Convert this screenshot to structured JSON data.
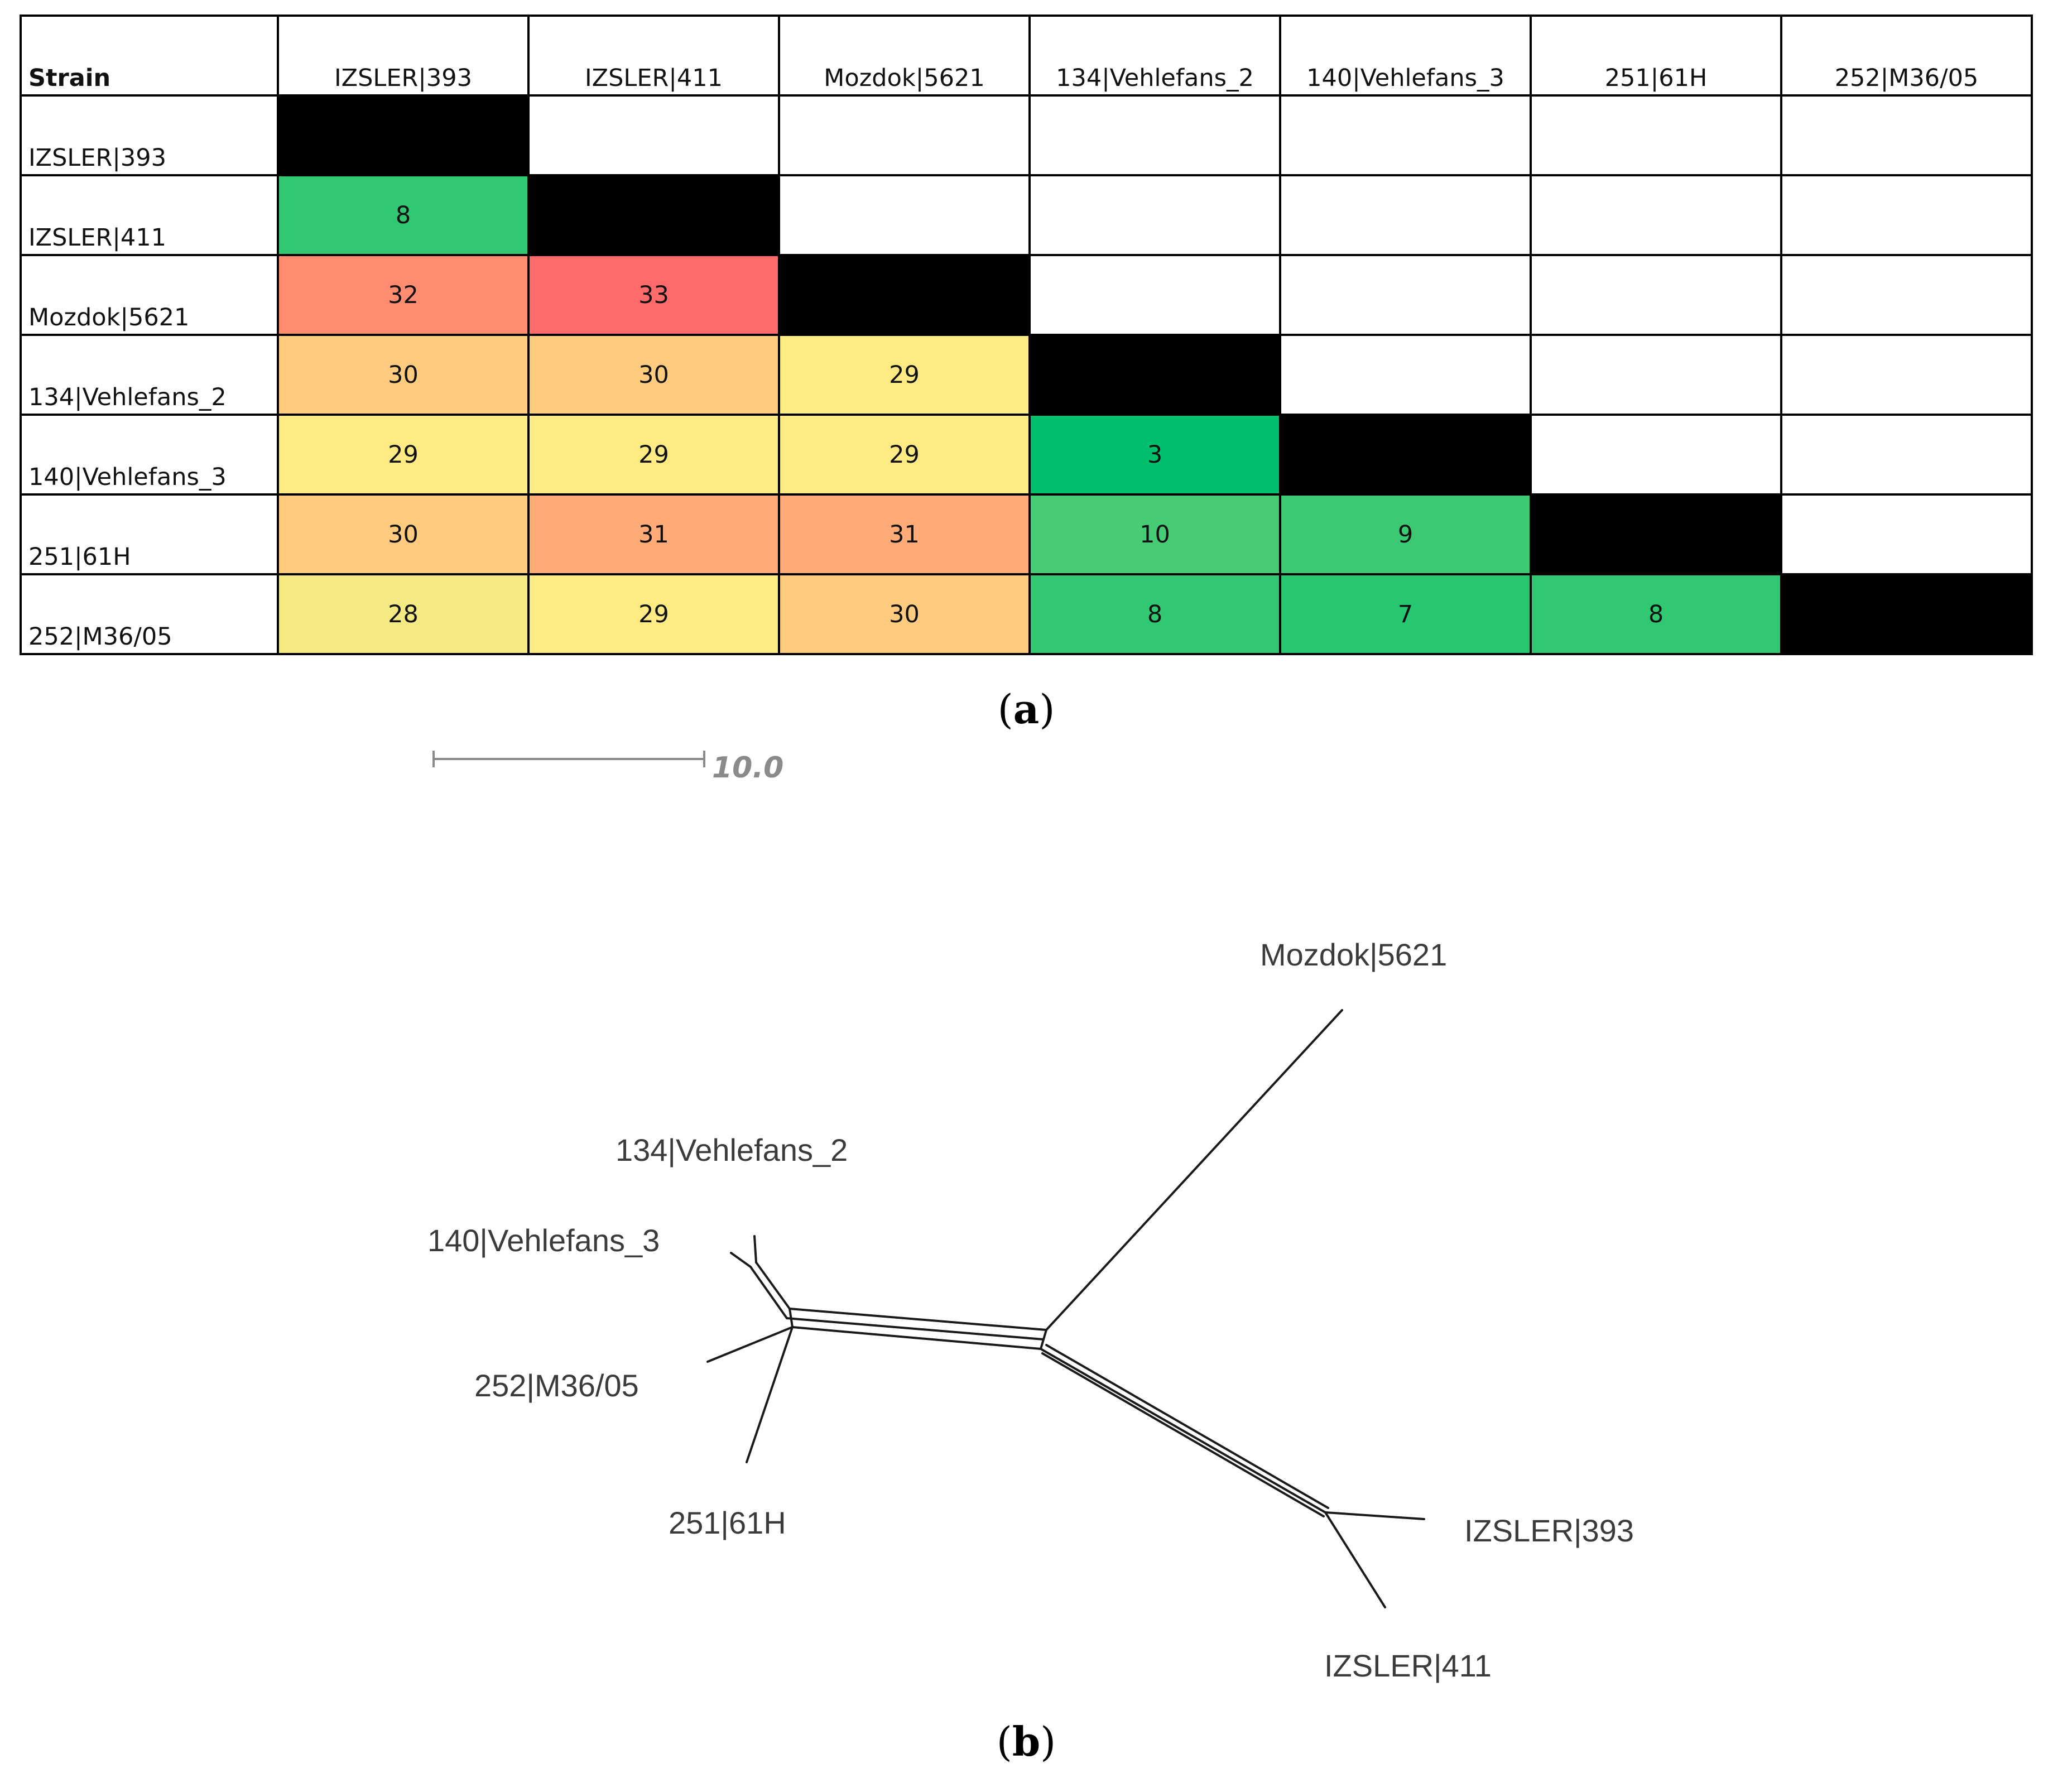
{
  "panel_a": {
    "caption_open": "(",
    "caption_letter": "a",
    "caption_close": ")",
    "corner_label": "Strain",
    "strains": [
      "IZSLER|393",
      "IZSLER|411",
      "Mozdok|5621",
      "134|Vehlefans_2",
      "140|Vehlefans_3",
      "251|61H",
      "252|M36/05"
    ],
    "distances": [
      [],
      [
        "8"
      ],
      [
        "32",
        "33"
      ],
      [
        "30",
        "30",
        "29"
      ],
      [
        "29",
        "29",
        "29",
        "3"
      ],
      [
        "30",
        "31",
        "31",
        "10",
        "9"
      ],
      [
        "28",
        "29",
        "30",
        "8",
        "7",
        "8"
      ]
    ],
    "colors": {
      "diagonal": "#000000",
      "scale_low": "#00c06e",
      "scale_mid": "#ffeb84",
      "scale_high": "#ff6b6b"
    }
  },
  "panel_b": {
    "caption_open": "(",
    "caption_letter": "b",
    "caption_close": ")",
    "scale_bar_label": "10.0",
    "labels": {
      "mozdok": "Mozdok|5621",
      "v2": "134|Vehlefans_2",
      "v3": "140|Vehlefans_3",
      "m36": "252|M36/05",
      "h61": "251|61H",
      "i393": "IZSLER|393",
      "i411": "IZSLER|411"
    }
  }
}
